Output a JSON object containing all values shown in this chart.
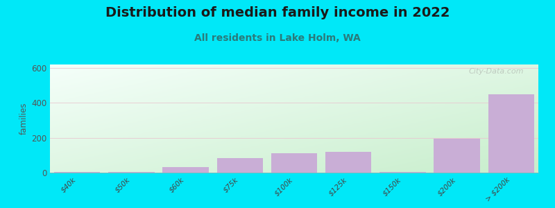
{
  "title": "Distribution of median family income in 2022",
  "subtitle": "All residents in Lake Holm, WA",
  "categories": [
    "$40k",
    "$50k",
    "$60k",
    "$75k",
    "$100k",
    "$125k",
    "$150k",
    "$200k",
    "> $200k"
  ],
  "values": [
    5,
    5,
    30,
    85,
    110,
    120,
    5,
    195,
    450
  ],
  "bar_color": "#c9aed6",
  "background_outer": "#00e8f8",
  "ylabel": "families",
  "ylim": [
    0,
    620
  ],
  "yticks": [
    0,
    200,
    400,
    600
  ],
  "title_fontsize": 14,
  "subtitle_fontsize": 10,
  "watermark": "City-Data.com",
  "grad_colors": [
    "#c8eecc",
    "#f5fffa"
  ]
}
